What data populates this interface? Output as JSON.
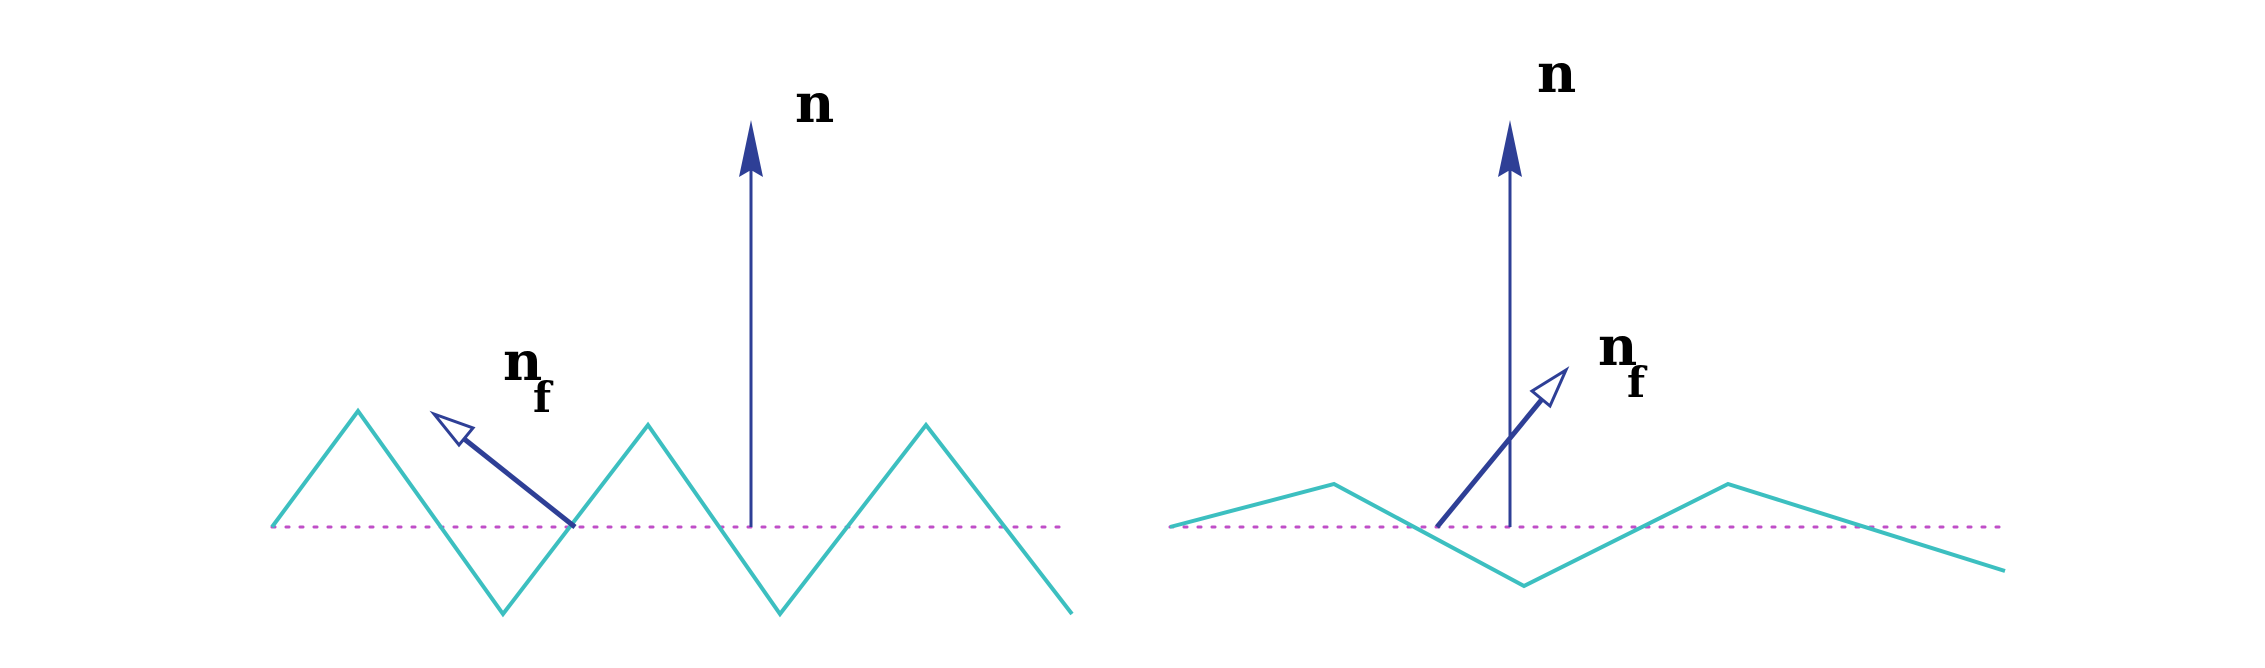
{
  "colors": {
    "surface": "#3cbfc0",
    "normal": "#2e3f96",
    "baseline": "#c04fc8",
    "text": "#000000"
  },
  "left_panel": {
    "normal_label": "n",
    "facet_label_main": "n",
    "facet_label_sub": "f"
  },
  "right_panel": {
    "normal_label": "n",
    "facet_label_main": "n",
    "facet_label_sub": "f"
  }
}
